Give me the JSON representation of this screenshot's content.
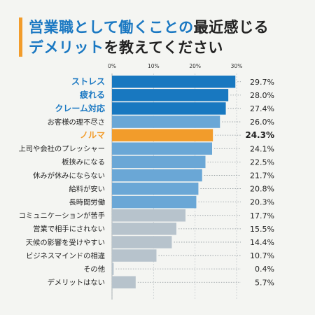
{
  "title": {
    "line1_part1": "営業職として働くことの",
    "line1_part2": "最近感じる",
    "line2_part1": "デメリット",
    "line2_part2": "を教えてください"
  },
  "colors": {
    "accent_blue": "#1a78c2",
    "highlight_orange": "#f29c2b",
    "bar_dark_blue": "#1878c0",
    "bar_mid_blue": "#6aa7d6",
    "bar_gray": "#b7c3cc",
    "background": "#f4f5f2",
    "title_bar": "#f29c2b"
  },
  "chart_data": {
    "type": "bar",
    "orientation": "horizontal",
    "xlim": [
      0,
      30
    ],
    "xticks": [
      "0%",
      "10%",
      "20%",
      "30%"
    ],
    "xtick_values": [
      0,
      10,
      20,
      30
    ],
    "grid": true,
    "categories": [
      "ストレス",
      "疲れる",
      "クレーム対応",
      "お客様の理不尽さ",
      "ノルマ",
      "上司や会社のプレッシャー",
      "板挟みになる",
      "休みが休みにならない",
      "給料が安い",
      "長時間労働",
      "コミュニケーションが苦手",
      "営業で相手にされない",
      "天候の影響を受けやすい",
      "ビジネスマインドの相違",
      "その他",
      "デメリットはない"
    ],
    "values": [
      29.7,
      28.0,
      27.4,
      26.0,
      24.3,
      24.1,
      22.5,
      21.7,
      20.8,
      20.3,
      17.7,
      15.5,
      14.4,
      10.7,
      0.4,
      5.7
    ],
    "value_labels": [
      "29.7%",
      "28.0%",
      "27.4%",
      "26.0%",
      "24.3%",
      "24.1%",
      "22.5%",
      "21.7%",
      "20.8%",
      "20.3%",
      "17.7%",
      "15.5%",
      "14.4%",
      "10.7%",
      "0.4%",
      "5.7%"
    ],
    "bar_styles": [
      "dark",
      "dark",
      "dark",
      "mid",
      "orange",
      "mid",
      "mid",
      "mid",
      "mid",
      "mid",
      "gray",
      "gray",
      "gray",
      "gray",
      "gray",
      "gray"
    ],
    "label_styles": [
      "blue",
      "blue",
      "blue",
      "normal",
      "orange",
      "normal",
      "normal",
      "normal",
      "normal",
      "normal",
      "normal",
      "normal",
      "normal",
      "normal",
      "normal",
      "normal"
    ]
  }
}
